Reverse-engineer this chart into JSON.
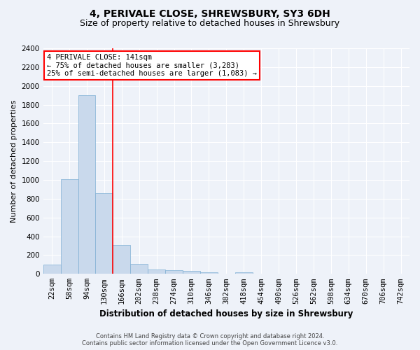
{
  "title": "4, PERIVALE CLOSE, SHREWSBURY, SY3 6DH",
  "subtitle": "Size of property relative to detached houses in Shrewsbury",
  "xlabel": "Distribution of detached houses by size in Shrewsbury",
  "ylabel": "Number of detached properties",
  "footer_line1": "Contains HM Land Registry data © Crown copyright and database right 2024.",
  "footer_line2": "Contains public sector information licensed under the Open Government Licence v3.0.",
  "bin_labels": [
    "22sqm",
    "58sqm",
    "94sqm",
    "130sqm",
    "166sqm",
    "202sqm",
    "238sqm",
    "274sqm",
    "310sqm",
    "346sqm",
    "382sqm",
    "418sqm",
    "454sqm",
    "490sqm",
    "526sqm",
    "562sqm",
    "598sqm",
    "634sqm",
    "670sqm",
    "706sqm",
    "742sqm"
  ],
  "bar_values": [
    100,
    1005,
    1900,
    860,
    310,
    110,
    50,
    40,
    30,
    15,
    0,
    15,
    0,
    0,
    0,
    0,
    0,
    0,
    0,
    0,
    0
  ],
  "bar_color": "#c9d9ec",
  "bar_edgecolor": "#7fafd4",
  "vline_x": 3.5,
  "vline_color": "red",
  "annotation_text": "4 PERIVALE CLOSE: 141sqm\n← 75% of detached houses are smaller (3,283)\n25% of semi-detached houses are larger (1,083) →",
  "annotation_box_color": "white",
  "annotation_box_edgecolor": "red",
  "ylim": [
    0,
    2400
  ],
  "yticks": [
    0,
    200,
    400,
    600,
    800,
    1000,
    1200,
    1400,
    1600,
    1800,
    2000,
    2200,
    2400
  ],
  "background_color": "#eef2f9",
  "plot_background": "#eef2f9",
  "grid_color": "white",
  "title_fontsize": 10,
  "subtitle_fontsize": 9,
  "xlabel_fontsize": 8.5,
  "ylabel_fontsize": 8,
  "tick_fontsize": 7.5,
  "annotation_fontsize": 7.5,
  "footer_fontsize": 6
}
